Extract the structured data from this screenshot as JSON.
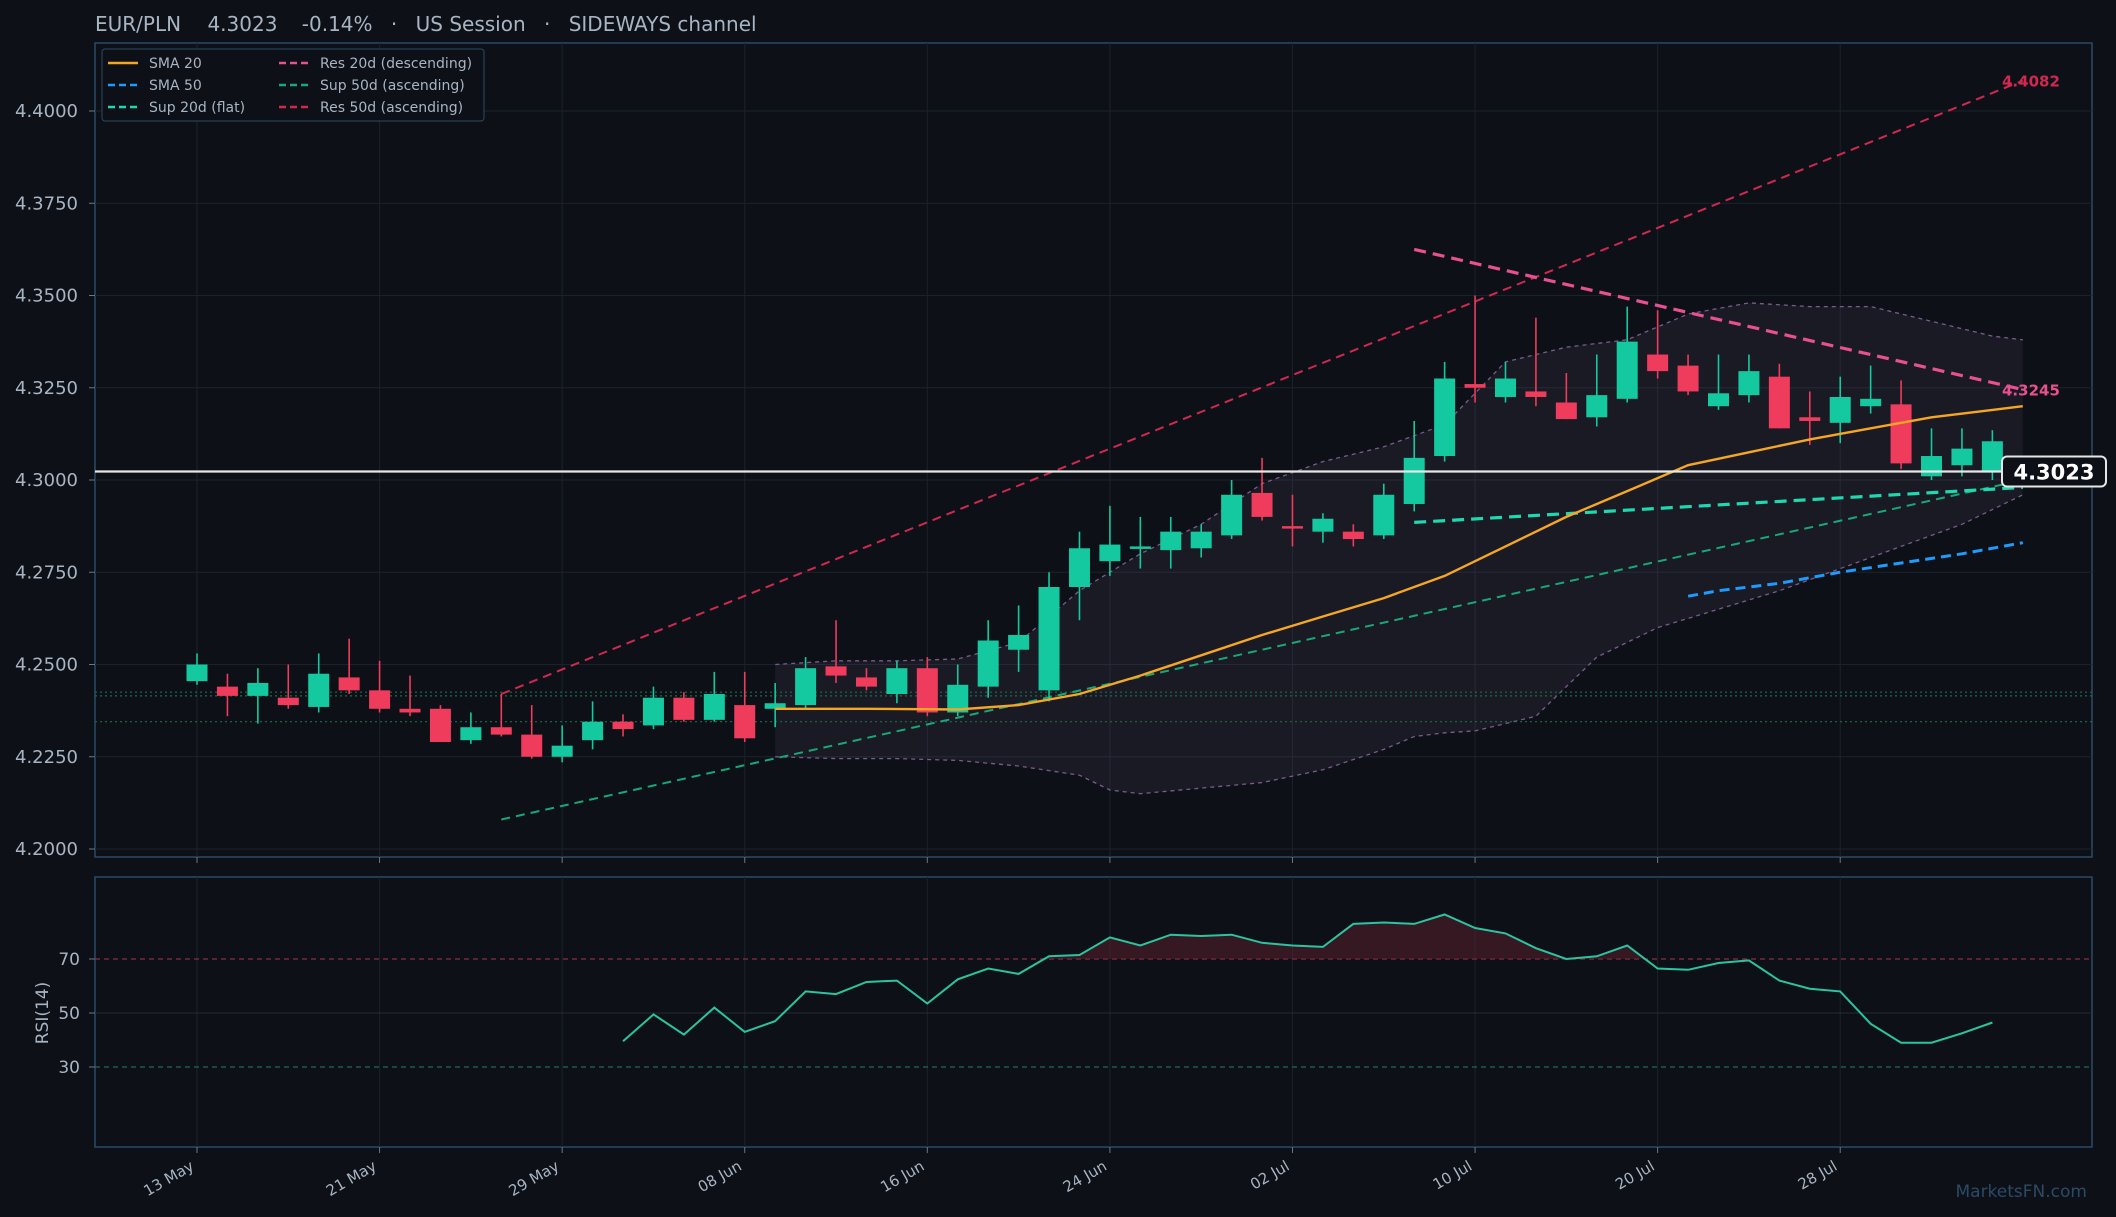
{
  "header": {
    "symbol": "EUR/PLN",
    "price": "4.3023",
    "change": "-0.14%",
    "session": "US Session",
    "channel": "SIDEWAYS channel",
    "sep": "·"
  },
  "watermark": "MarketsFN.com",
  "colors": {
    "bg": "#0d1117",
    "panel_border": "#2b4a66",
    "grid": "#1b222c",
    "up": "#14c9a0",
    "down": "#ef3b5c",
    "sma20": "#f5a623",
    "sma50": "#1e9bff",
    "sup20": "#1ed8b0",
    "res20": "#e8508f",
    "sup50": "#18a878",
    "res50": "#d0284f",
    "bb": "#7b5a8c",
    "rsi": "#2bc4a0",
    "price_line": "#e6e6e6"
  },
  "chart_data": [
    {
      "type": "candlestick",
      "ylim": [
        4.198,
        4.418
      ],
      "yticks": [
        "4.2000",
        "4.2250",
        "4.2500",
        "4.2750",
        "4.3000",
        "4.3250",
        "4.3500",
        "4.3750",
        "4.4000"
      ],
      "xticks": [
        {
          "label": "13 May",
          "i": 0
        },
        {
          "label": "21 May",
          "i": 6
        },
        {
          "label": "29 May",
          "i": 12
        },
        {
          "label": "08 Jun",
          "i": 18
        },
        {
          "label": "16 Jun",
          "i": 24
        },
        {
          "label": "24 Jun",
          "i": 30
        },
        {
          "label": "02 Jul",
          "i": 36
        },
        {
          "label": "10 Jul",
          "i": 42
        },
        {
          "label": "20 Jul",
          "i": 48
        },
        {
          "label": "28 Jul",
          "i": 54
        }
      ],
      "candles": [
        [
          4.2455,
          4.253,
          4.2445,
          4.25
        ],
        [
          4.244,
          4.2475,
          4.236,
          4.2415
        ],
        [
          4.2415,
          4.249,
          4.234,
          4.245
        ],
        [
          4.241,
          4.25,
          4.238,
          4.239
        ],
        [
          4.2385,
          4.253,
          4.237,
          4.2475
        ],
        [
          4.2465,
          4.257,
          4.242,
          4.243
        ],
        [
          4.243,
          4.251,
          4.237,
          4.238
        ],
        [
          4.238,
          4.247,
          4.236,
          4.237
        ],
        [
          4.238,
          4.239,
          4.229,
          4.229
        ],
        [
          4.2295,
          4.237,
          4.2285,
          4.233
        ],
        [
          4.233,
          4.242,
          4.2305,
          4.231
        ],
        [
          4.231,
          4.239,
          4.2245,
          4.225
        ],
        [
          4.225,
          4.2335,
          4.2235,
          4.228
        ],
        [
          4.2295,
          4.24,
          4.227,
          4.2345
        ],
        [
          4.2345,
          4.2365,
          4.2305,
          4.2325
        ],
        [
          4.2335,
          4.244,
          4.2325,
          4.241
        ],
        [
          4.241,
          4.2425,
          4.2345,
          4.235
        ],
        [
          4.235,
          4.248,
          4.2345,
          4.242
        ],
        [
          4.239,
          4.248,
          4.229,
          4.23
        ],
        [
          4.238,
          4.245,
          4.233,
          4.2395
        ],
        [
          4.239,
          4.252,
          4.238,
          4.249
        ],
        [
          4.2495,
          4.262,
          4.245,
          4.247
        ],
        [
          4.2465,
          4.249,
          4.243,
          4.244
        ],
        [
          4.242,
          4.251,
          4.2395,
          4.249
        ],
        [
          4.249,
          4.252,
          4.236,
          4.237
        ],
        [
          4.237,
          4.25,
          4.236,
          4.2445
        ],
        [
          4.244,
          4.262,
          4.241,
          4.2565
        ],
        [
          4.254,
          4.266,
          4.248,
          4.258
        ],
        [
          4.243,
          4.275,
          4.24,
          4.271
        ],
        [
          4.271,
          4.286,
          4.262,
          4.2815
        ],
        [
          4.278,
          4.293,
          4.274,
          4.2825
        ],
        [
          4.282,
          4.29,
          4.276,
          4.282
        ],
        [
          4.281,
          4.29,
          4.276,
          4.286
        ],
        [
          4.2815,
          4.288,
          4.279,
          4.286
        ],
        [
          4.285,
          4.3,
          4.284,
          4.296
        ],
        [
          4.2965,
          4.306,
          4.289,
          4.29
        ],
        [
          4.2875,
          4.296,
          4.282,
          4.287
        ],
        [
          4.286,
          4.291,
          4.283,
          4.2895
        ],
        [
          4.286,
          4.288,
          4.282,
          4.284
        ],
        [
          4.285,
          4.299,
          4.284,
          4.296
        ],
        [
          4.2935,
          4.316,
          4.2915,
          4.306
        ],
        [
          4.3065,
          4.332,
          4.305,
          4.3275
        ],
        [
          4.326,
          4.35,
          4.321,
          4.325
        ],
        [
          4.3225,
          4.332,
          4.321,
          4.3275
        ],
        [
          4.324,
          4.344,
          4.32,
          4.3225
        ],
        [
          4.321,
          4.329,
          4.3165,
          4.3165
        ],
        [
          4.317,
          4.334,
          4.3145,
          4.323
        ],
        [
          4.322,
          4.347,
          4.321,
          4.3375
        ],
        [
          4.334,
          4.346,
          4.3275,
          4.3295
        ],
        [
          4.331,
          4.334,
          4.323,
          4.324
        ],
        [
          4.32,
          4.334,
          4.319,
          4.3235
        ],
        [
          4.323,
          4.334,
          4.321,
          4.3295
        ],
        [
          4.328,
          4.3315,
          4.314,
          4.314
        ],
        [
          4.317,
          4.324,
          4.3095,
          4.316
        ],
        [
          4.3155,
          4.328,
          4.31,
          4.3225
        ],
        [
          4.32,
          4.331,
          4.318,
          4.322
        ],
        [
          4.3205,
          4.327,
          4.303,
          4.3045
        ],
        [
          4.301,
          4.314,
          4.3,
          4.3065
        ],
        [
          4.304,
          4.314,
          4.301,
          4.3085
        ],
        [
          4.3025,
          4.3135,
          4.3,
          4.3105
        ]
      ],
      "sma20": [
        [
          19,
          4.238
        ],
        [
          22,
          4.238
        ],
        [
          25,
          4.2378
        ],
        [
          27,
          4.239
        ],
        [
          29,
          4.242
        ],
        [
          31,
          4.247
        ],
        [
          33,
          4.2525
        ],
        [
          35,
          4.258
        ],
        [
          37,
          4.263
        ],
        [
          39,
          4.268
        ],
        [
          41,
          4.274
        ],
        [
          43,
          4.282
        ],
        [
          45,
          4.29
        ],
        [
          47,
          4.297
        ],
        [
          49,
          4.304
        ],
        [
          51,
          4.3075
        ],
        [
          53,
          4.311
        ],
        [
          55,
          4.314
        ],
        [
          57,
          4.317
        ],
        [
          59,
          4.319
        ],
        [
          60,
          4.32
        ]
      ],
      "sma50": [
        [
          49,
          4.2685
        ],
        [
          50,
          4.27
        ],
        [
          52,
          4.272
        ],
        [
          54,
          4.275
        ],
        [
          56,
          4.2775
        ],
        [
          58,
          4.28
        ],
        [
          60,
          4.283
        ]
      ],
      "bb_upper": [
        [
          19,
          4.25
        ],
        [
          21,
          4.251
        ],
        [
          23,
          4.251
        ],
        [
          25,
          4.2515
        ],
        [
          27,
          4.256
        ],
        [
          29,
          4.27
        ],
        [
          31,
          4.28
        ],
        [
          33,
          4.288
        ],
        [
          35,
          4.299
        ],
        [
          37,
          4.305
        ],
        [
          39,
          4.309
        ],
        [
          41,
          4.315
        ],
        [
          43,
          4.332
        ],
        [
          45,
          4.336
        ],
        [
          47,
          4.338
        ],
        [
          49,
          4.345
        ],
        [
          51,
          4.348
        ],
        [
          53,
          4.347
        ],
        [
          55,
          4.347
        ],
        [
          57,
          4.343
        ],
        [
          59,
          4.339
        ],
        [
          60,
          4.338
        ]
      ],
      "bb_lower": [
        [
          19,
          4.225
        ],
        [
          21,
          4.2245
        ],
        [
          23,
          4.2245
        ],
        [
          25,
          4.224
        ],
        [
          27,
          4.2225
        ],
        [
          29,
          4.22
        ],
        [
          30,
          4.216
        ],
        [
          31,
          4.215
        ],
        [
          33,
          4.2165
        ],
        [
          35,
          4.218
        ],
        [
          37,
          4.2215
        ],
        [
          39,
          4.227
        ],
        [
          40,
          4.2305
        ],
        [
          41,
          4.2315
        ],
        [
          42,
          4.232
        ],
        [
          44,
          4.236
        ],
        [
          45,
          4.244
        ],
        [
          46,
          4.252
        ],
        [
          48,
          4.26
        ],
        [
          50,
          4.265
        ],
        [
          52,
          4.27
        ],
        [
          54,
          4.276
        ],
        [
          56,
          4.282
        ],
        [
          58,
          4.288
        ],
        [
          60,
          4.296
        ]
      ],
      "sup20": [
        [
          40,
          4.2885
        ],
        [
          60,
          4.298
        ]
      ],
      "res20": [
        [
          40,
          4.3625
        ],
        [
          60,
          4.3245
        ]
      ],
      "sup50": [
        [
          10,
          4.208
        ],
        [
          60,
          4.3
        ]
      ],
      "res50": [
        [
          10,
          4.242
        ],
        [
          60,
          4.4082
        ]
      ],
      "support_dotted_levels": [
        4.2425,
        4.2415,
        4.2345
      ],
      "last_price": 4.3023,
      "price_label": "4.3023",
      "res20_label": "4.3245",
      "res50_label": "4.4082",
      "legend": [
        {
          "label": "SMA 20",
          "key": "sma20",
          "dash": "solid"
        },
        {
          "label": "SMA 50",
          "key": "sma50",
          "dash": "dash"
        },
        {
          "label": "Sup 20d (flat)",
          "key": "sup20",
          "dash": "dash"
        },
        {
          "label": "Res 20d (descending)",
          "key": "res20",
          "dash": "dash"
        },
        {
          "label": "Sup 50d (ascending)",
          "key": "sup50",
          "dash": "dash"
        },
        {
          "label": "Res 50d (ascending)",
          "key": "res50",
          "dash": "dash"
        }
      ]
    },
    {
      "type": "line",
      "ylabel": "RSI(14)",
      "ylim": [
        0,
        100
      ],
      "yticks": [
        "70",
        "50",
        "30"
      ],
      "overbought": 70,
      "oversold": 30,
      "values": [
        [
          14,
          39.5
        ],
        [
          15,
          49.5
        ],
        [
          16,
          42
        ],
        [
          17,
          52
        ],
        [
          18,
          43
        ],
        [
          19,
          47
        ],
        [
          20,
          58
        ],
        [
          21,
          57
        ],
        [
          22,
          61.5
        ],
        [
          23,
          62
        ],
        [
          24,
          53.5
        ],
        [
          25,
          62.5
        ],
        [
          26,
          66.5
        ],
        [
          27,
          64.5
        ],
        [
          28,
          71
        ],
        [
          29,
          71.5
        ],
        [
          30,
          78
        ],
        [
          31,
          75
        ],
        [
          32,
          79
        ],
        [
          33,
          78.5
        ],
        [
          34,
          79
        ],
        [
          35,
          76
        ],
        [
          36,
          75
        ],
        [
          37,
          74.5
        ],
        [
          38,
          83
        ],
        [
          39,
          83.5
        ],
        [
          40,
          83
        ],
        [
          41,
          86.5
        ],
        [
          42,
          81.5
        ],
        [
          43,
          79.5
        ],
        [
          44,
          74
        ],
        [
          45,
          70
        ],
        [
          46,
          71
        ],
        [
          47,
          75
        ],
        [
          48,
          66.5
        ],
        [
          49,
          66
        ],
        [
          50,
          68.5
        ],
        [
          51,
          69.5
        ],
        [
          52,
          62
        ],
        [
          53,
          59
        ],
        [
          54,
          58
        ],
        [
          55,
          46
        ],
        [
          56,
          39
        ],
        [
          57,
          39
        ],
        [
          58,
          42.5
        ],
        [
          59,
          46.5
        ]
      ]
    }
  ]
}
